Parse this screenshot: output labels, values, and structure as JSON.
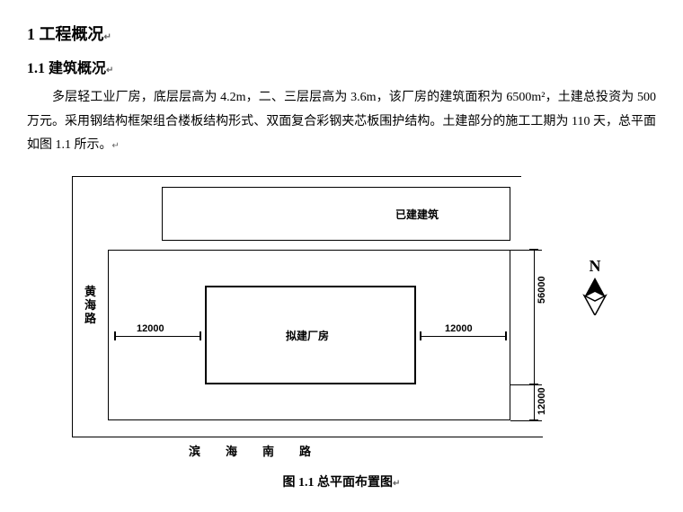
{
  "heading1": "1  工程概况",
  "heading2": "1.1  建筑概况",
  "paragraph": "多层轻工业厂房，底层层高为 4.2m，二、三层层高为 3.6m，该厂房的建筑面积为 6500m²，土建总投资为 500 万元。采用钢结构框架组合楼板结构形式、双面复合彩钢夹芯板围护结构。土建部分的施工工期为 110 天，总平面如图 1.1 所示。",
  "pmark": "↵",
  "figure": {
    "existing_building": "已建建筑",
    "proposed_building": "拟建厂房",
    "road_left": "黄海路",
    "road_bottom": "滨海南路",
    "dim_left": "12000",
    "dim_right": "12000",
    "dim_height_main": "56000",
    "dim_height_gap": "12000",
    "compass": "N",
    "caption": "图 1.1   总平面布置图"
  }
}
